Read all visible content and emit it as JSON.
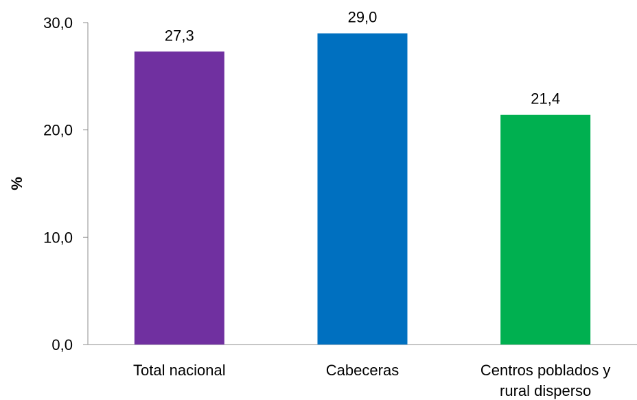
{
  "chart_data": {
    "type": "bar",
    "categories": [
      [
        "Total nacional"
      ],
      [
        "Cabeceras"
      ],
      [
        "Centros poblados y",
        "rural disperso"
      ]
    ],
    "values": [
      27.3,
      29.0,
      21.4
    ],
    "value_labels": [
      "27,3",
      "29,0",
      "21,4"
    ],
    "bar_colors": [
      "#7030a0",
      "#0070c0",
      "#00b050"
    ],
    "title": "",
    "xlabel": "",
    "ylabel": "%",
    "ylim": [
      0,
      30
    ],
    "yticks": [
      0,
      10,
      20,
      30
    ],
    "ytick_labels": [
      "0,0",
      "10,0",
      "20,0",
      "30,0"
    ],
    "grid": false,
    "legend": "none"
  }
}
